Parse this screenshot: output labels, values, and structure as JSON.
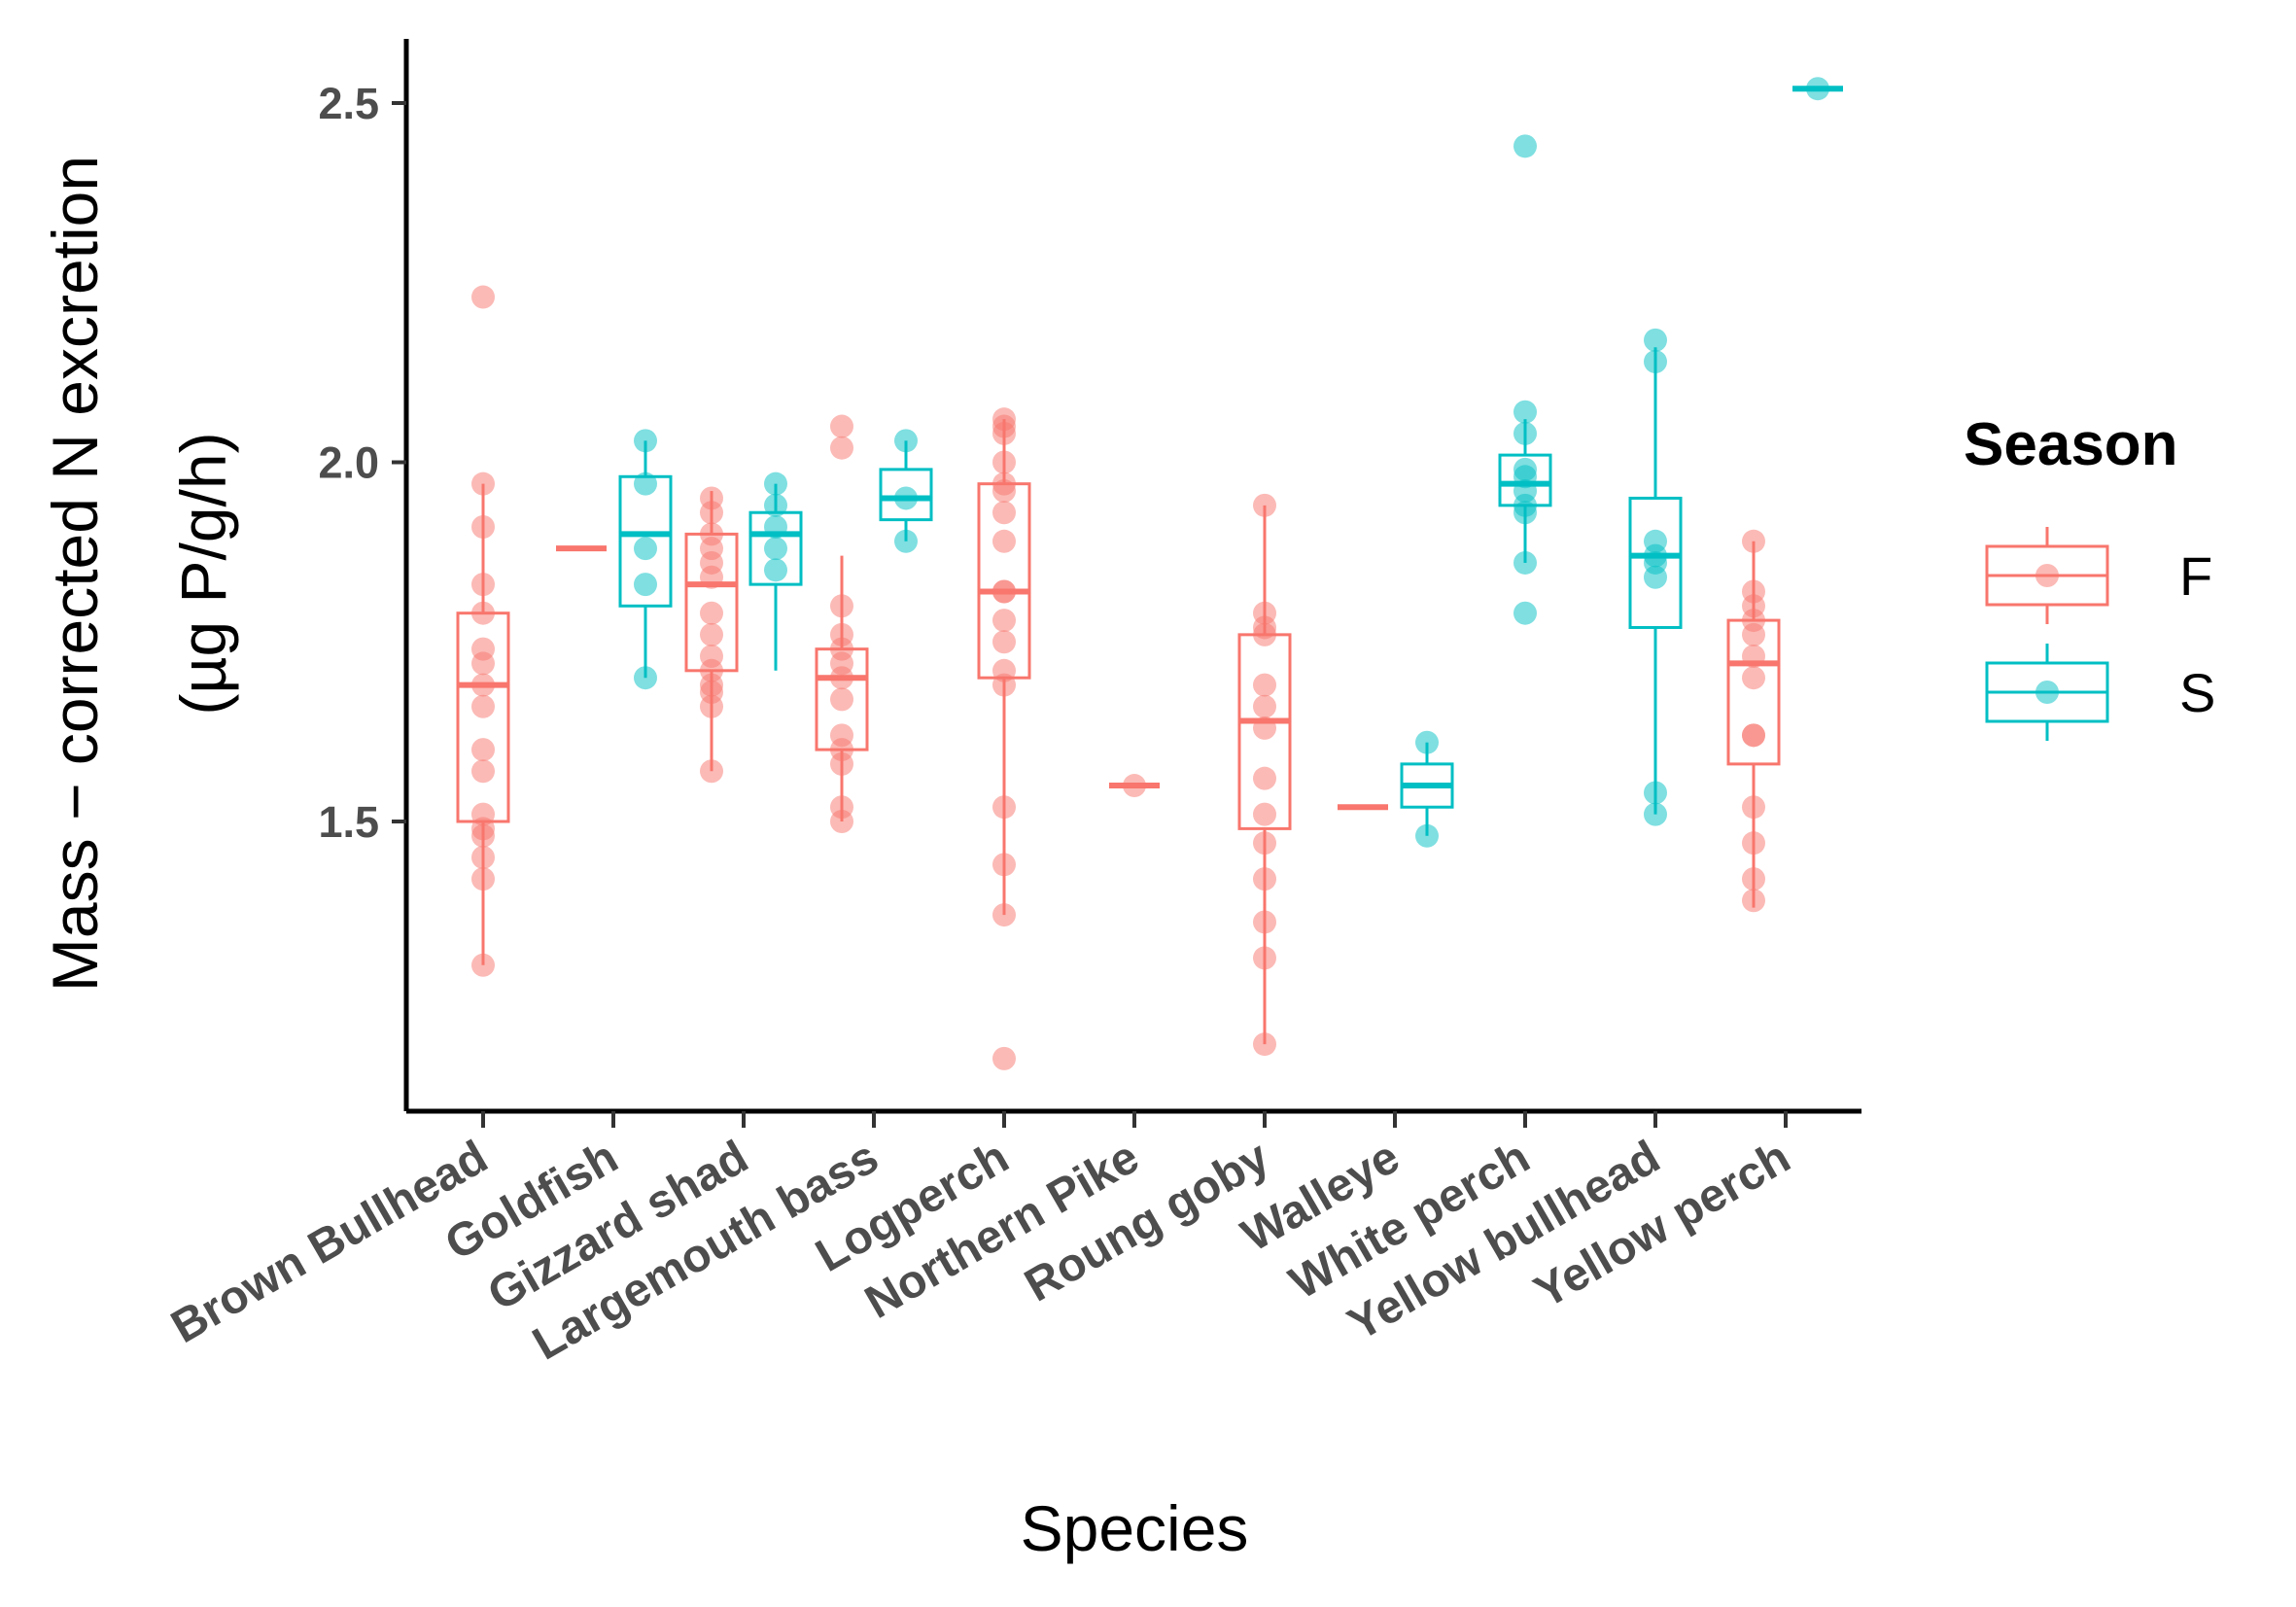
{
  "chart_data": {
    "type": "boxplot",
    "title": "",
    "xlabel": "Species",
    "ylabel": "Mass − corrected N excretion",
    "ylabel2": "(µg P/g/h)",
    "ylim": [
      1.1,
      2.6
    ],
    "yticks": [
      1.5,
      2.0,
      2.5
    ],
    "ytick_labels": [
      "1.5",
      "2.0",
      "2.5"
    ],
    "grid": false,
    "legend_position": "right",
    "legend": {
      "title": "Season",
      "entries": [
        {
          "key": "F",
          "label": "F",
          "color": "#F8766D"
        },
        {
          "key": "S",
          "label": "S",
          "color": "#00BFC4"
        }
      ]
    },
    "categories": [
      "Brown Bullhead",
      "Goldfish",
      "Gizzard shad",
      "Largemouth bass",
      "Logperch",
      "Northern Pike",
      "Roung goby",
      "Walleye",
      "White perch",
      "Yellow bullhead",
      "Yellow perch"
    ],
    "boxes": [
      {
        "category": "Brown Bullhead",
        "season": "F",
        "whisker_low": 1.3,
        "q1": 1.5,
        "median": 1.69,
        "q3": 1.79,
        "whisker_high": 1.97
      },
      {
        "category": "Goldfish",
        "season": "F",
        "whisker_low": 1.88,
        "q1": 1.88,
        "median": 1.88,
        "q3": 1.88,
        "whisker_high": 1.88
      },
      {
        "category": "Goldfish",
        "season": "S",
        "whisker_low": 1.7,
        "q1": 1.8,
        "median": 1.9,
        "q3": 1.98,
        "whisker_high": 2.03
      },
      {
        "category": "Gizzard shad",
        "season": "F",
        "whisker_low": 1.57,
        "q1": 1.71,
        "median": 1.83,
        "q3": 1.9,
        "whisker_high": 1.96
      },
      {
        "category": "Gizzard shad",
        "season": "S",
        "whisker_low": 1.71,
        "q1": 1.83,
        "median": 1.9,
        "q3": 1.93,
        "whisker_high": 1.97
      },
      {
        "category": "Largemouth bass",
        "season": "F",
        "whisker_low": 1.5,
        "q1": 1.6,
        "median": 1.7,
        "q3": 1.74,
        "whisker_high": 1.87
      },
      {
        "category": "Largemouth bass",
        "season": "S",
        "whisker_low": 1.89,
        "q1": 1.92,
        "median": 1.95,
        "q3": 1.99,
        "whisker_high": 2.03
      },
      {
        "category": "Logperch",
        "season": "F",
        "whisker_low": 1.37,
        "q1": 1.7,
        "median": 1.82,
        "q3": 1.97,
        "whisker_high": 2.06
      },
      {
        "category": "Northern Pike",
        "season": "F",
        "whisker_low": 1.55,
        "q1": 1.55,
        "median": 1.55,
        "q3": 1.55,
        "whisker_high": 1.55
      },
      {
        "category": "Roung goby",
        "season": "F",
        "whisker_low": 1.19,
        "q1": 1.49,
        "median": 1.64,
        "q3": 1.76,
        "whisker_high": 1.94
      },
      {
        "category": "Walleye",
        "season": "F",
        "whisker_low": 1.52,
        "q1": 1.52,
        "median": 1.52,
        "q3": 1.52,
        "whisker_high": 1.52
      },
      {
        "category": "Walleye",
        "season": "S",
        "whisker_low": 1.48,
        "q1": 1.52,
        "median": 1.55,
        "q3": 1.58,
        "whisker_high": 1.61
      },
      {
        "category": "White perch",
        "season": "S",
        "whisker_low": 1.86,
        "q1": 1.94,
        "median": 1.97,
        "q3": 2.01,
        "whisker_high": 2.06
      },
      {
        "category": "Yellow bullhead",
        "season": "S",
        "whisker_low": 1.51,
        "q1": 1.77,
        "median": 1.87,
        "q3": 1.95,
        "whisker_high": 2.16
      },
      {
        "category": "Yellow perch",
        "season": "F",
        "whisker_low": 1.38,
        "q1": 1.58,
        "median": 1.72,
        "q3": 1.78,
        "whisker_high": 1.89
      },
      {
        "category": "Yellow perch",
        "season": "S",
        "whisker_low": 2.52,
        "q1": 2.52,
        "median": 2.52,
        "q3": 2.52,
        "whisker_high": 2.52
      }
    ],
    "points": [
      {
        "category": "Brown Bullhead",
        "season": "F",
        "values": [
          2.23,
          1.97,
          1.91,
          1.83,
          1.79,
          1.74,
          1.72,
          1.69,
          1.66,
          1.6,
          1.57,
          1.51,
          1.49,
          1.48,
          1.45,
          1.42,
          1.3
        ]
      },
      {
        "category": "Goldfish",
        "season": "S",
        "values": [
          2.03,
          1.97,
          1.88,
          1.83,
          1.7
        ]
      },
      {
        "category": "Gizzard shad",
        "season": "F",
        "values": [
          1.95,
          1.93,
          1.9,
          1.88,
          1.86,
          1.84,
          1.79,
          1.76,
          1.73,
          1.71,
          1.69,
          1.68,
          1.66,
          1.57
        ]
      },
      {
        "category": "Gizzard shad",
        "season": "S",
        "values": [
          1.97,
          1.94,
          1.91,
          1.88,
          1.85
        ]
      },
      {
        "category": "Largemouth bass",
        "season": "F",
        "values": [
          2.05,
          2.02,
          1.8,
          1.76,
          1.74,
          1.72,
          1.7,
          1.67,
          1.62,
          1.6,
          1.58,
          1.52,
          1.5
        ]
      },
      {
        "category": "Largemouth bass",
        "season": "S",
        "values": [
          2.03,
          1.95,
          1.89
        ]
      },
      {
        "category": "Logperch",
        "season": "F",
        "values": [
          2.06,
          2.05,
          2.04,
          2.0,
          1.97,
          1.96,
          1.93,
          1.89,
          1.82,
          1.82,
          1.78,
          1.75,
          1.71,
          1.69,
          1.52,
          1.44,
          1.37,
          1.17
        ]
      },
      {
        "category": "Northern Pike",
        "season": "F",
        "values": [
          1.55
        ]
      },
      {
        "category": "Roung goby",
        "season": "F",
        "values": [
          1.94,
          1.79,
          1.77,
          1.76,
          1.69,
          1.66,
          1.63,
          1.56,
          1.51,
          1.47,
          1.42,
          1.36,
          1.31,
          1.19
        ]
      },
      {
        "category": "Walleye",
        "season": "S",
        "values": [
          1.61,
          1.48
        ]
      },
      {
        "category": "White perch",
        "season": "S",
        "values": [
          2.44,
          2.07,
          2.04,
          1.99,
          1.98,
          1.96,
          1.94,
          1.93,
          1.86,
          1.79
        ]
      },
      {
        "category": "Yellow bullhead",
        "season": "S",
        "values": [
          2.17,
          2.14,
          1.89,
          1.87,
          1.86,
          1.84,
          1.54,
          1.51
        ]
      },
      {
        "category": "Yellow perch",
        "season": "F",
        "values": [
          1.89,
          1.82,
          1.8,
          1.78,
          1.76,
          1.73,
          1.7,
          1.62,
          1.62,
          1.52,
          1.47,
          1.42,
          1.39
        ]
      },
      {
        "category": "Yellow perch",
        "season": "S",
        "values": [
          2.52
        ]
      }
    ]
  }
}
